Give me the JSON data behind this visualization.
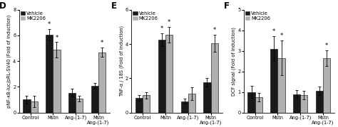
{
  "panels": [
    {
      "label": "D",
      "ylabel": "pNF-κB-luc/pRL-SV40 (Fold of induction)",
      "ylim": [
        0,
        8
      ],
      "yticks": [
        0,
        2,
        4,
        6,
        8
      ],
      "categories": [
        "Control",
        "Mstn",
        "Ang-(1-7)",
        "Mstn\nAng-(1-7)"
      ],
      "vehicle_values": [
        1.0,
        6.05,
        1.55,
        2.1
      ],
      "mk2206_values": [
        0.85,
        4.9,
        1.1,
        4.7
      ],
      "vehicle_errors": [
        0.3,
        0.45,
        0.3,
        0.22
      ],
      "mk2206_errors": [
        0.45,
        0.6,
        0.22,
        0.38
      ],
      "asterisks_vehicle": [
        false,
        true,
        false,
        false
      ],
      "asterisks_mk2206": [
        false,
        true,
        false,
        true
      ]
    },
    {
      "label": "E",
      "ylabel": "TNF-α / 18S (Fold of induction)",
      "ylim": [
        0,
        6
      ],
      "yticks": [
        0,
        2,
        4,
        6
      ],
      "categories": [
        "Control",
        "Mstn",
        "Ang-(1-7)",
        "Mstn\nAng-(1-7)"
      ],
      "vehicle_values": [
        0.85,
        4.25,
        0.65,
        1.75
      ],
      "mk2206_values": [
        1.0,
        4.55,
        1.1,
        4.05
      ],
      "vehicle_errors": [
        0.15,
        0.38,
        0.15,
        0.25
      ],
      "mk2206_errors": [
        0.2,
        0.45,
        0.38,
        0.5
      ],
      "asterisks_vehicle": [
        false,
        true,
        false,
        false
      ],
      "asterisks_mk2206": [
        false,
        true,
        false,
        true
      ]
    },
    {
      "label": "F",
      "ylabel": "DCF signal (Fold of induction)",
      "ylim": [
        0,
        5
      ],
      "yticks": [
        0,
        1,
        2,
        3,
        4,
        5
      ],
      "categories": [
        "Control",
        "Mstn",
        "Ang-(1-7)",
        "Mstn\nAng-(1-7)"
      ],
      "vehicle_values": [
        1.0,
        3.1,
        0.9,
        1.05
      ],
      "mk2206_values": [
        0.75,
        2.65,
        0.85,
        2.65
      ],
      "vehicle_errors": [
        0.3,
        0.6,
        0.2,
        0.2
      ],
      "mk2206_errors": [
        0.2,
        0.85,
        0.2,
        0.38
      ],
      "asterisks_vehicle": [
        false,
        true,
        false,
        false
      ],
      "asterisks_mk2206": [
        false,
        true,
        false,
        true
      ]
    }
  ],
  "vehicle_color": "#1a1a1a",
  "mk2206_color": "#b0b0b0",
  "bar_width": 0.32,
  "legend_labels": [
    "Vehicle",
    "MK2206"
  ],
  "figure_bg": "#ffffff",
  "font_size": 5.0,
  "tick_font_size": 4.8,
  "label_font_size": 8.5
}
